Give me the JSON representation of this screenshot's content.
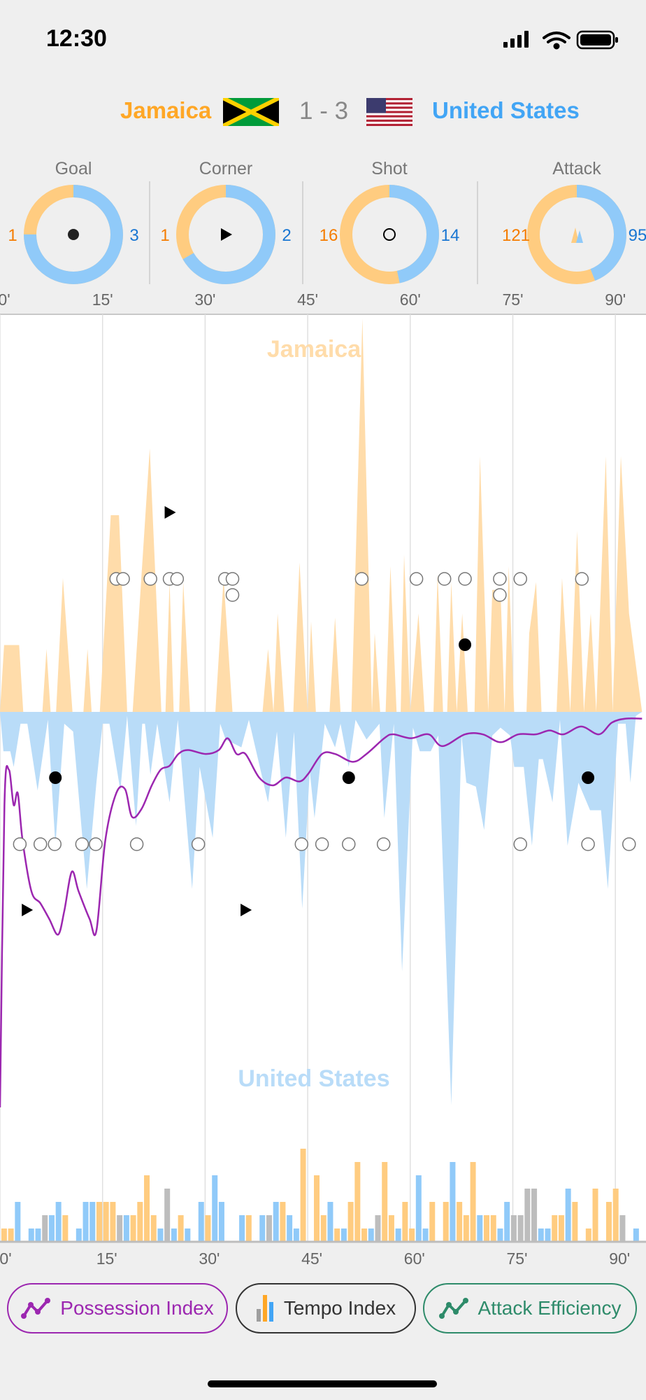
{
  "status_bar": {
    "time": "12:30",
    "icons": [
      "signal-icon",
      "wifi-icon",
      "battery-icon"
    ]
  },
  "match": {
    "home": "Jamaica",
    "away": "United States",
    "score": "1 - 3",
    "home_flag": "jamaica-flag-icon",
    "away_flag": "usa-flag-icon"
  },
  "colors": {
    "home": "#ffa726",
    "away": "#42a5f5",
    "home_area": "#ffdcaa",
    "away_area": "#b9dcf8",
    "home_ring": "#ffcc80",
    "away_ring": "#90caf9",
    "home_num": "#f57c00",
    "away_num": "#1976d2",
    "neutral": "#bdbdbd",
    "possession": "#9c27b0",
    "attack": "#2e8b6a"
  },
  "stats": [
    {
      "label": "Goal",
      "home": 1,
      "away": 3,
      "icon": "goal-dot-icon"
    },
    {
      "label": "Corner",
      "home": 1,
      "away": 2,
      "icon": "corner-triangle-icon"
    },
    {
      "label": "Shot",
      "home": 16,
      "away": 14,
      "icon": "shot-circle-icon"
    },
    {
      "label": "Attack",
      "home": 121,
      "away": 95,
      "icon": "attack-triangles-icon"
    }
  ],
  "axis_ticks": [
    "0'",
    "15'",
    "30'",
    "45'",
    "60'",
    "75'",
    "90'"
  ],
  "chart_data": [
    {
      "type": "area",
      "title_home": "Jamaica",
      "title_away": "United States",
      "x_unit": "minute",
      "xlim": [
        0,
        94
      ],
      "ylim": [
        -10,
        10
      ],
      "home_series": [
        [
          0,
          0
        ],
        [
          0.6,
          1.7
        ],
        [
          2.8,
          1.7
        ],
        [
          3.4,
          0
        ],
        [
          6.2,
          0
        ],
        [
          6.8,
          1.6
        ],
        [
          7.4,
          0
        ],
        [
          8.2,
          0
        ],
        [
          9.2,
          3.4
        ],
        [
          10.6,
          0
        ],
        [
          12.2,
          0
        ],
        [
          12.8,
          1.6
        ],
        [
          13.4,
          0
        ],
        [
          14.6,
          0
        ],
        [
          16.2,
          5
        ],
        [
          17.4,
          5
        ],
        [
          18.6,
          0
        ],
        [
          19.4,
          0
        ],
        [
          21.9,
          6.7
        ],
        [
          23.6,
          0
        ],
        [
          24.2,
          0
        ],
        [
          24.8,
          3.3
        ],
        [
          25.4,
          0
        ],
        [
          26.2,
          0
        ],
        [
          26.8,
          3.3
        ],
        [
          27.8,
          0
        ],
        [
          31.5,
          0
        ],
        [
          32.7,
          3.4
        ],
        [
          34,
          0
        ],
        [
          38.4,
          0
        ],
        [
          39.2,
          1.6
        ],
        [
          40,
          0
        ],
        [
          40.6,
          2.5
        ],
        [
          41.6,
          0
        ],
        [
          42.9,
          0
        ],
        [
          43.8,
          3.8
        ],
        [
          45,
          0
        ],
        [
          45.5,
          2.3
        ],
        [
          46.2,
          0
        ],
        [
          48.2,
          0
        ],
        [
          49,
          2.4
        ],
        [
          49.8,
          0
        ],
        [
          51.4,
          0
        ],
        [
          53,
          10
        ],
        [
          54.4,
          0
        ],
        [
          54.8,
          2
        ],
        [
          55.6,
          0
        ],
        [
          56.4,
          0
        ],
        [
          57.1,
          3.7
        ],
        [
          58,
          0
        ],
        [
          58.6,
          0
        ],
        [
          59.1,
          4
        ],
        [
          60,
          0
        ],
        [
          61.2,
          2.5
        ],
        [
          62.1,
          0
        ],
        [
          63.4,
          0
        ],
        [
          64,
          3.5
        ],
        [
          64.8,
          0
        ],
        [
          65.4,
          0
        ],
        [
          66,
          3.3
        ],
        [
          66.8,
          0
        ],
        [
          67.6,
          2.5
        ],
        [
          68.4,
          0
        ],
        [
          69.4,
          0
        ],
        [
          70.2,
          6.5
        ],
        [
          71.4,
          0
        ],
        [
          72,
          3.1
        ],
        [
          73.2,
          3.1
        ],
        [
          73.8,
          0
        ],
        [
          74.4,
          3.7
        ],
        [
          75.2,
          0
        ],
        [
          77,
          0
        ],
        [
          77.4,
          2
        ],
        [
          78.4,
          3.3
        ],
        [
          79.2,
          0
        ],
        [
          81.4,
          0
        ],
        [
          82.2,
          3.4
        ],
        [
          83.4,
          0
        ],
        [
          84.4,
          4.6
        ],
        [
          85.4,
          0
        ],
        [
          86.4,
          2.5
        ],
        [
          87.2,
          0
        ],
        [
          88.6,
          6.5
        ],
        [
          89.6,
          0
        ],
        [
          90.8,
          6.5
        ],
        [
          92,
          2.5
        ],
        [
          93.9,
          0
        ]
      ],
      "away_series": [
        [
          0,
          0
        ],
        [
          0.5,
          1
        ],
        [
          1.5,
          1
        ],
        [
          2,
          1.4
        ],
        [
          3,
          0.3
        ],
        [
          4,
          0.3
        ],
        [
          5.5,
          2
        ],
        [
          7,
          0.2
        ],
        [
          8.1,
          3.4
        ],
        [
          9.4,
          0.3
        ],
        [
          10.7,
          0.5
        ],
        [
          12.7,
          4.5
        ],
        [
          14.1,
          1.8
        ],
        [
          15,
          0.3
        ],
        [
          16,
          0.3
        ],
        [
          17.6,
          2
        ],
        [
          18.6,
          0.1
        ],
        [
          19.9,
          2.9
        ],
        [
          20.8,
          0.3
        ],
        [
          21.2,
          0.3
        ],
        [
          22,
          1.6
        ],
        [
          23,
          0.3
        ],
        [
          24.8,
          2.3
        ],
        [
          26,
          0.2
        ],
        [
          28.1,
          4.5
        ],
        [
          29.2,
          1.4
        ],
        [
          31.1,
          3.2
        ],
        [
          32.2,
          0.3
        ],
        [
          33,
          0.7
        ],
        [
          35.3,
          0.9
        ],
        [
          36.4,
          0.2
        ],
        [
          39.2,
          2.3
        ],
        [
          40.5,
          0.5
        ],
        [
          41.8,
          3.2
        ],
        [
          43,
          0.5
        ],
        [
          44.2,
          5
        ],
        [
          45.3,
          1.5
        ],
        [
          46,
          2.7
        ],
        [
          47.5,
          0.3
        ],
        [
          49,
          0.9
        ],
        [
          49.8,
          0.3
        ],
        [
          51,
          1.4
        ],
        [
          52,
          0.2
        ],
        [
          53.6,
          0.7
        ],
        [
          55.5,
          0.3
        ],
        [
          56.2,
          2.7
        ],
        [
          57.6,
          0.3
        ],
        [
          58.8,
          6.6
        ],
        [
          60.4,
          0.4
        ],
        [
          61.4,
          1
        ],
        [
          63,
          1
        ],
        [
          64.1,
          0.6
        ],
        [
          66,
          10
        ],
        [
          67.5,
          0.6
        ],
        [
          68.2,
          1.8
        ],
        [
          69.6,
          1.9
        ],
        [
          70.8,
          3
        ],
        [
          72,
          0.6
        ],
        [
          73.2,
          0.4
        ],
        [
          74.6,
          0.6
        ],
        [
          75.2,
          1.4
        ],
        [
          76.6,
          1.4
        ],
        [
          77.8,
          3.4
        ],
        [
          78.8,
          1.2
        ],
        [
          79.4,
          1.2
        ],
        [
          80.8,
          2.3
        ],
        [
          81.9,
          0.2
        ],
        [
          83,
          3.4
        ],
        [
          84.6,
          1.8
        ],
        [
          86.3,
          2.5
        ],
        [
          87.9,
          2.5
        ],
        [
          88.9,
          4.5
        ],
        [
          90.4,
          0.3
        ],
        [
          91.5,
          0.3
        ],
        [
          92.2,
          1.8
        ],
        [
          93,
          0.1
        ],
        [
          93.9,
          0
        ]
      ],
      "possession_index": [
        [
          0,
          0
        ],
        [
          0.65,
          77
        ],
        [
          1.3,
          86
        ],
        [
          2,
          77
        ],
        [
          2.6,
          80
        ],
        [
          3.3,
          68
        ],
        [
          4.6,
          55
        ],
        [
          5.9,
          52
        ],
        [
          7.2,
          48
        ],
        [
          8.5,
          44
        ],
        [
          9.4,
          50
        ],
        [
          10.5,
          60
        ],
        [
          11.5,
          55
        ],
        [
          13.1,
          48
        ],
        [
          14.1,
          45
        ],
        [
          15.4,
          68
        ],
        [
          17,
          80
        ],
        [
          18.3,
          81
        ],
        [
          19.3,
          74
        ],
        [
          20.7,
          76
        ],
        [
          22.2,
          82
        ],
        [
          23.5,
          86
        ],
        [
          24.8,
          87
        ],
        [
          26.1,
          90
        ],
        [
          27.5,
          91
        ],
        [
          30.1,
          90
        ],
        [
          32,
          91
        ],
        [
          33.3,
          94
        ],
        [
          34.6,
          90
        ],
        [
          35.9,
          90
        ],
        [
          37.9,
          84
        ],
        [
          39.9,
          82
        ],
        [
          41.8,
          84
        ],
        [
          43.8,
          83
        ],
        [
          45.1,
          85
        ],
        [
          47.1,
          90
        ],
        [
          49,
          90
        ],
        [
          51.6,
          88
        ],
        [
          53.6,
          90
        ],
        [
          56.2,
          94
        ],
        [
          57.5,
          95
        ],
        [
          60.1,
          94
        ],
        [
          62.7,
          95
        ],
        [
          64.7,
          92
        ],
        [
          68,
          95
        ],
        [
          70.6,
          95
        ],
        [
          73.2,
          93
        ],
        [
          75.8,
          95
        ],
        [
          78.4,
          95
        ],
        [
          80.4,
          96
        ],
        [
          82.4,
          95
        ],
        [
          85,
          97
        ],
        [
          87.6,
          95
        ],
        [
          89.5,
          98
        ],
        [
          91.5,
          99
        ],
        [
          93.9,
          99
        ]
      ],
      "events": {
        "home": {
          "goals": [
            68.0
          ],
          "corners": [
            24.8
          ],
          "shots": [
            17.0,
            18.0,
            22.0,
            24.8,
            25.9,
            32.9,
            34.0,
            34.0,
            52.9,
            60.9,
            65.0,
            68.0,
            73.1,
            73.1,
            76.1,
            85.1
          ]
        },
        "away": {
          "goals": [
            8.1,
            51.0,
            86.0
          ],
          "corners": [
            3.9,
            35.9
          ],
          "shots": [
            2.9,
            5.9,
            8.0,
            12.0,
            14.0,
            20.0,
            29.0,
            44.1,
            47.1,
            51.0,
            56.1,
            76.1,
            86.0,
            92.0
          ]
        }
      }
    },
    {
      "type": "bar",
      "title": "Tempo Index",
      "x_unit": "minute",
      "ylim": [
        0,
        7
      ],
      "bars": [
        [
          0,
          1,
          "home"
        ],
        [
          1,
          1,
          "home"
        ],
        [
          2,
          3,
          "away"
        ],
        [
          4,
          1,
          "away"
        ],
        [
          5,
          1,
          "away"
        ],
        [
          6,
          2,
          "even"
        ],
        [
          7,
          2,
          "away"
        ],
        [
          8,
          3,
          "away"
        ],
        [
          9,
          2,
          "home"
        ],
        [
          11,
          1,
          "away"
        ],
        [
          12,
          3,
          "away"
        ],
        [
          13,
          3,
          "away"
        ],
        [
          14,
          3,
          "home"
        ],
        [
          15,
          3,
          "home"
        ],
        [
          16,
          3,
          "home"
        ],
        [
          17,
          2,
          "even"
        ],
        [
          18,
          2,
          "away"
        ],
        [
          19,
          2,
          "home"
        ],
        [
          20,
          3,
          "home"
        ],
        [
          21,
          5,
          "home"
        ],
        [
          22,
          2,
          "home"
        ],
        [
          23,
          1,
          "away"
        ],
        [
          24,
          4,
          "even"
        ],
        [
          25,
          1,
          "away"
        ],
        [
          26,
          2,
          "home"
        ],
        [
          27,
          1,
          "away"
        ],
        [
          29,
          3,
          "away"
        ],
        [
          30,
          2,
          "home"
        ],
        [
          31,
          5,
          "away"
        ],
        [
          32,
          3,
          "away"
        ],
        [
          35,
          2,
          "away"
        ],
        [
          36,
          2,
          "home"
        ],
        [
          38,
          2,
          "away"
        ],
        [
          39,
          2,
          "even"
        ],
        [
          40,
          3,
          "away"
        ],
        [
          41,
          3,
          "home"
        ],
        [
          42,
          2,
          "away"
        ],
        [
          43,
          1,
          "away"
        ],
        [
          44,
          7,
          "home"
        ],
        [
          46,
          5,
          "home"
        ],
        [
          47,
          2,
          "home"
        ],
        [
          48,
          3,
          "away"
        ],
        [
          49,
          1,
          "home"
        ],
        [
          50,
          1,
          "away"
        ],
        [
          51,
          3,
          "home"
        ],
        [
          52,
          6,
          "home"
        ],
        [
          53,
          1,
          "home"
        ],
        [
          54,
          1,
          "away"
        ],
        [
          55,
          2,
          "even"
        ],
        [
          56,
          6,
          "home"
        ],
        [
          57,
          2,
          "home"
        ],
        [
          58,
          1,
          "away"
        ],
        [
          59,
          3,
          "home"
        ],
        [
          60,
          1,
          "home"
        ],
        [
          61,
          5,
          "away"
        ],
        [
          62,
          1,
          "away"
        ],
        [
          63,
          3,
          "home"
        ],
        [
          65,
          3,
          "home"
        ],
        [
          66,
          6,
          "away"
        ],
        [
          67,
          3,
          "home"
        ],
        [
          68,
          2,
          "home"
        ],
        [
          69,
          6,
          "home"
        ],
        [
          70,
          2,
          "away"
        ],
        [
          71,
          2,
          "home"
        ],
        [
          72,
          2,
          "home"
        ],
        [
          73,
          1,
          "away"
        ],
        [
          74,
          3,
          "away"
        ],
        [
          75,
          2,
          "even"
        ],
        [
          76,
          2,
          "even"
        ],
        [
          77,
          4,
          "even"
        ],
        [
          78,
          4,
          "even"
        ],
        [
          79,
          1,
          "away"
        ],
        [
          80,
          1,
          "away"
        ],
        [
          81,
          2,
          "home"
        ],
        [
          82,
          2,
          "home"
        ],
        [
          83,
          4,
          "away"
        ],
        [
          84,
          3,
          "home"
        ],
        [
          86,
          1,
          "home"
        ],
        [
          87,
          4,
          "home"
        ],
        [
          89,
          3,
          "home"
        ],
        [
          90,
          4,
          "home"
        ],
        [
          91,
          2,
          "even"
        ],
        [
          93,
          1,
          "away"
        ]
      ]
    }
  ],
  "legend_buttons": [
    {
      "label": "Possession Index",
      "icon": "line-chart-icon"
    },
    {
      "label": "Tempo Index",
      "icon": "bar-chart-icon"
    },
    {
      "label": "Attack Efficiency",
      "icon": "line-chart-icon"
    }
  ]
}
